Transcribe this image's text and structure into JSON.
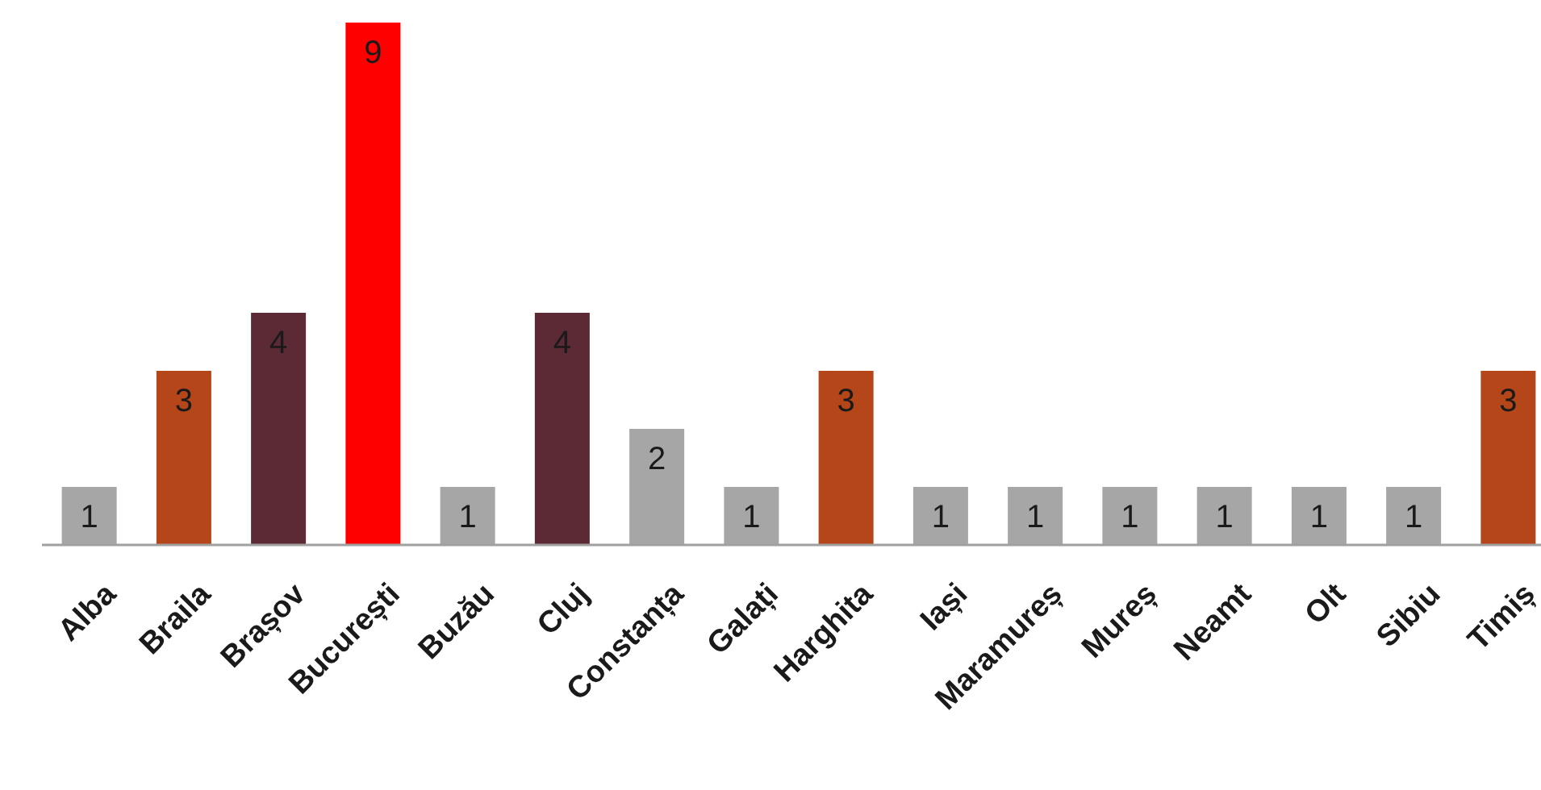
{
  "chart_data": {
    "type": "bar",
    "categories": [
      "Alba",
      "Braila",
      "Brașov",
      "București",
      "Buzău",
      "Cluj",
      "Constanța",
      "Galați",
      "Harghita",
      "Iași",
      "Maramureș",
      "Mureș",
      "Neamt",
      "Olt",
      "Sibiu",
      "Timiș"
    ],
    "values": [
      1,
      3,
      4,
      9,
      1,
      4,
      2,
      1,
      3,
      1,
      1,
      1,
      1,
      1,
      1,
      3
    ],
    "colors": [
      "#a6a6a6",
      "#b5461a",
      "#5c2a35",
      "#ff0000",
      "#a6a6a6",
      "#5c2a35",
      "#a6a6a6",
      "#a6a6a6",
      "#b5461a",
      "#a6a6a6",
      "#a6a6a6",
      "#a6a6a6",
      "#a6a6a6",
      "#a6a6a6",
      "#a6a6a6",
      "#b5461a"
    ],
    "data_labels": true
  }
}
